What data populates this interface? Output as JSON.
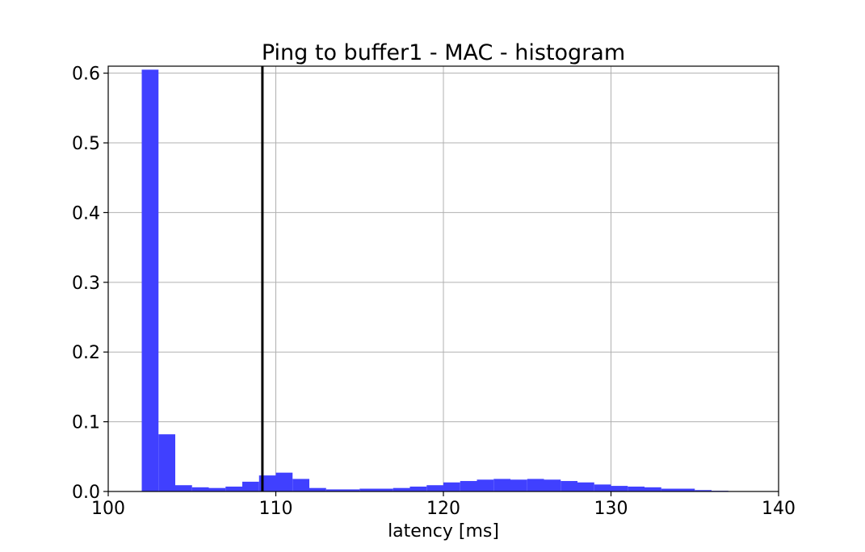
{
  "chart_data": {
    "type": "bar",
    "title": "Ping to buffer1 - MAC - histogram",
    "xlabel": "latency [ms]",
    "ylabel": "",
    "xlim": [
      100,
      140
    ],
    "ylim": [
      0,
      0.61
    ],
    "xticks": [
      "100",
      "110",
      "120",
      "130",
      "140"
    ],
    "yticks": [
      "0.0",
      "0.1",
      "0.2",
      "0.3",
      "0.4",
      "0.5",
      "0.6"
    ],
    "grid": true,
    "bar_color": "#4040ff",
    "bin_width": 1,
    "bins": [
      {
        "x0": 102,
        "value": 0.605
      },
      {
        "x0": 103,
        "value": 0.082
      },
      {
        "x0": 104,
        "value": 0.009
      },
      {
        "x0": 105,
        "value": 0.006
      },
      {
        "x0": 106,
        "value": 0.005
      },
      {
        "x0": 107,
        "value": 0.007
      },
      {
        "x0": 108,
        "value": 0.014
      },
      {
        "x0": 109,
        "value": 0.023
      },
      {
        "x0": 110,
        "value": 0.027
      },
      {
        "x0": 111,
        "value": 0.018
      },
      {
        "x0": 112,
        "value": 0.005
      },
      {
        "x0": 113,
        "value": 0.003
      },
      {
        "x0": 114,
        "value": 0.003
      },
      {
        "x0": 115,
        "value": 0.004
      },
      {
        "x0": 116,
        "value": 0.004
      },
      {
        "x0": 117,
        "value": 0.005
      },
      {
        "x0": 118,
        "value": 0.007
      },
      {
        "x0": 119,
        "value": 0.009
      },
      {
        "x0": 120,
        "value": 0.013
      },
      {
        "x0": 121,
        "value": 0.015
      },
      {
        "x0": 122,
        "value": 0.017
      },
      {
        "x0": 123,
        "value": 0.018
      },
      {
        "x0": 124,
        "value": 0.017
      },
      {
        "x0": 125,
        "value": 0.018
      },
      {
        "x0": 126,
        "value": 0.017
      },
      {
        "x0": 127,
        "value": 0.015
      },
      {
        "x0": 128,
        "value": 0.013
      },
      {
        "x0": 129,
        "value": 0.01
      },
      {
        "x0": 130,
        "value": 0.008
      },
      {
        "x0": 131,
        "value": 0.007
      },
      {
        "x0": 132,
        "value": 0.006
      },
      {
        "x0": 133,
        "value": 0.004
      },
      {
        "x0": 134,
        "value": 0.004
      },
      {
        "x0": 135,
        "value": 0.002
      },
      {
        "x0": 136,
        "value": 0.001
      }
    ],
    "vline": {
      "x": 109.2,
      "color": "#000000"
    }
  }
}
